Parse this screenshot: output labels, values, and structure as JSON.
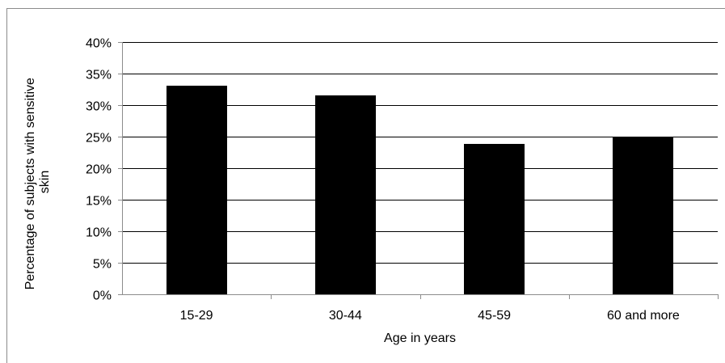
{
  "chart_data": {
    "type": "bar",
    "categories": [
      "15-29",
      "30-44",
      "45-59",
      "60 and more"
    ],
    "values": [
      33.1,
      31.6,
      23.8,
      24.9
    ],
    "unit": "%",
    "xlabel": "Age in years",
    "ylabel_lines": [
      "Percentage of subjects with sensitive",
      "skin"
    ],
    "ylim": [
      0,
      40
    ],
    "yticks": [
      "0%",
      "5%",
      "10%",
      "15%",
      "20%",
      "25%",
      "30%",
      "35%",
      "40%"
    ],
    "grid": true,
    "legend": "none",
    "colors": {
      "bar": "#000000",
      "grid": "#000000",
      "axis": "#8c8c8c"
    }
  }
}
